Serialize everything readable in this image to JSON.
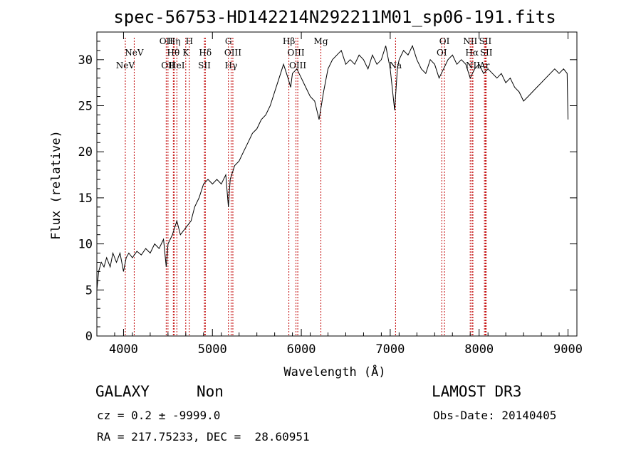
{
  "chart_data": {
    "type": "line",
    "title": "spec-56753-HD142214N292211M01_sp06-191.fits",
    "xlabel": "Wavelength (Å)",
    "ylabel": "Flux (relative)",
    "xlim": [
      3700,
      9100
    ],
    "ylim": [
      0,
      33
    ],
    "xticks": [
      4000,
      5000,
      6000,
      7000,
      8000,
      9000
    ],
    "yticks": [
      0,
      5,
      10,
      15,
      20,
      25,
      30
    ],
    "series": [
      {
        "name": "flux",
        "points": [
          [
            3700,
            5
          ],
          [
            3720,
            7
          ],
          [
            3750,
            8
          ],
          [
            3780,
            7.5
          ],
          [
            3810,
            8.5
          ],
          [
            3850,
            7.5
          ],
          [
            3880,
            9
          ],
          [
            3920,
            8
          ],
          [
            3960,
            9
          ],
          [
            4000,
            7
          ],
          [
            4030,
            8.5
          ],
          [
            4060,
            9
          ],
          [
            4100,
            8.5
          ],
          [
            4150,
            9.2
          ],
          [
            4200,
            8.8
          ],
          [
            4250,
            9.5
          ],
          [
            4300,
            9
          ],
          [
            4350,
            10
          ],
          [
            4400,
            9.5
          ],
          [
            4450,
            10.5
          ],
          [
            4480,
            7.5
          ],
          [
            4500,
            10
          ],
          [
            4550,
            11
          ],
          [
            4600,
            12.5
          ],
          [
            4640,
            11
          ],
          [
            4680,
            11.5
          ],
          [
            4720,
            12
          ],
          [
            4760,
            12.5
          ],
          [
            4800,
            14
          ],
          [
            4850,
            15
          ],
          [
            4900,
            16.5
          ],
          [
            4950,
            17
          ],
          [
            5000,
            16.5
          ],
          [
            5050,
            17
          ],
          [
            5100,
            16.5
          ],
          [
            5150,
            17.5
          ],
          [
            5180,
            14
          ],
          [
            5200,
            17
          ],
          [
            5250,
            18.5
          ],
          [
            5300,
            19
          ],
          [
            5350,
            20
          ],
          [
            5400,
            21
          ],
          [
            5450,
            22
          ],
          [
            5500,
            22.5
          ],
          [
            5550,
            23.5
          ],
          [
            5600,
            24
          ],
          [
            5650,
            25
          ],
          [
            5700,
            26.5
          ],
          [
            5750,
            28
          ],
          [
            5800,
            29.5
          ],
          [
            5850,
            28
          ],
          [
            5880,
            27
          ],
          [
            5900,
            28.5
          ],
          [
            5950,
            29
          ],
          [
            6000,
            28
          ],
          [
            6050,
            27
          ],
          [
            6100,
            26
          ],
          [
            6150,
            25.5
          ],
          [
            6200,
            23.5
          ],
          [
            6250,
            26.5
          ],
          [
            6300,
            29
          ],
          [
            6350,
            30
          ],
          [
            6400,
            30.5
          ],
          [
            6450,
            31
          ],
          [
            6500,
            29.5
          ],
          [
            6550,
            30
          ],
          [
            6600,
            29.5
          ],
          [
            6650,
            30.5
          ],
          [
            6700,
            30
          ],
          [
            6750,
            29
          ],
          [
            6800,
            30.5
          ],
          [
            6850,
            29.5
          ],
          [
            6900,
            30
          ],
          [
            6950,
            31.5
          ],
          [
            7000,
            29
          ],
          [
            7050,
            24.5
          ],
          [
            7080,
            29
          ],
          [
            7100,
            30
          ],
          [
            7150,
            31
          ],
          [
            7200,
            30.5
          ],
          [
            7250,
            31.5
          ],
          [
            7300,
            30
          ],
          [
            7350,
            29
          ],
          [
            7400,
            28.5
          ],
          [
            7450,
            30
          ],
          [
            7500,
            29.5
          ],
          [
            7550,
            28
          ],
          [
            7600,
            29
          ],
          [
            7650,
            30
          ],
          [
            7700,
            30.5
          ],
          [
            7750,
            29.5
          ],
          [
            7800,
            30
          ],
          [
            7850,
            29.5
          ],
          [
            7900,
            28
          ],
          [
            7950,
            29
          ],
          [
            8000,
            29.5
          ],
          [
            8050,
            28.5
          ],
          [
            8100,
            29
          ],
          [
            8150,
            28.5
          ],
          [
            8200,
            28
          ],
          [
            8250,
            28.5
          ],
          [
            8300,
            27.5
          ],
          [
            8350,
            28
          ],
          [
            8400,
            27
          ],
          [
            8450,
            26.5
          ],
          [
            8500,
            25.5
          ],
          [
            8550,
            26
          ],
          [
            8600,
            26.5
          ],
          [
            8650,
            27
          ],
          [
            8700,
            27.5
          ],
          [
            8750,
            28
          ],
          [
            8800,
            28.5
          ],
          [
            8850,
            29
          ],
          [
            8900,
            28.5
          ],
          [
            8950,
            29
          ],
          [
            8990,
            28.5
          ],
          [
            9000,
            23.5
          ]
        ]
      }
    ],
    "line_markers": [
      {
        "label": "NeV",
        "wavelength": 4020,
        "row": 1
      },
      {
        "label": "NeV",
        "wavelength": 4120,
        "row": 0
      },
      {
        "label": "OII",
        "wavelength": 4480,
        "row": -1
      },
      {
        "label": "OII",
        "wavelength": 4500,
        "row": 1
      },
      {
        "label": "Hη",
        "wavelength": 4570,
        "row": -1
      },
      {
        "label": "Hθ",
        "wavelength": 4560,
        "row": 0
      },
      {
        "label": "HeI",
        "wavelength": 4600,
        "row": 1
      },
      {
        "label": "H",
        "wavelength": 4740,
        "row": -1
      },
      {
        "label": "K",
        "wavelength": 4700,
        "row": 0
      },
      {
        "label": "Hδ",
        "wavelength": 4920,
        "row": 0
      },
      {
        "label": "SII",
        "wavelength": 4910,
        "row": 1
      },
      {
        "label": "G",
        "wavelength": 5180,
        "row": -1
      },
      {
        "label": "OIII",
        "wavelength": 5230,
        "row": 0
      },
      {
        "label": "Hγ",
        "wavelength": 5210,
        "row": 1
      },
      {
        "label": "Hβ",
        "wavelength": 5860,
        "row": -1
      },
      {
        "label": "OIII",
        "wavelength": 5940,
        "row": 0
      },
      {
        "label": "OIII",
        "wavelength": 5960,
        "row": 1
      },
      {
        "label": "Mg",
        "wavelength": 6220,
        "row": -1
      },
      {
        "label": "Na",
        "wavelength": 7060,
        "row": 1
      },
      {
        "label": "OI",
        "wavelength": 7610,
        "row": -1
      },
      {
        "label": "OI",
        "wavelength": 7580,
        "row": 0
      },
      {
        "label": "NII",
        "wavelength": 7900,
        "row": -1
      },
      {
        "label": "Hα",
        "wavelength": 7920,
        "row": 0
      },
      {
        "label": "NII",
        "wavelength": 7930,
        "row": 1
      },
      {
        "label": "SII",
        "wavelength": 8070,
        "row": -1
      },
      {
        "label": "SII",
        "wavelength": 8080,
        "row": 0
      },
      {
        "label": "Ar",
        "wavelength": 8060,
        "row": 1
      }
    ],
    "marker_color": "#c00000"
  },
  "footer": {
    "class": "GALAXY",
    "subclass": "Non",
    "survey": "LAMOST DR3",
    "cz": "cz = 0.2 ± -9999.0",
    "obs_date": "Obs-Date: 20140405",
    "radec": "RA = 217.75233, DEC =  28.60951"
  }
}
